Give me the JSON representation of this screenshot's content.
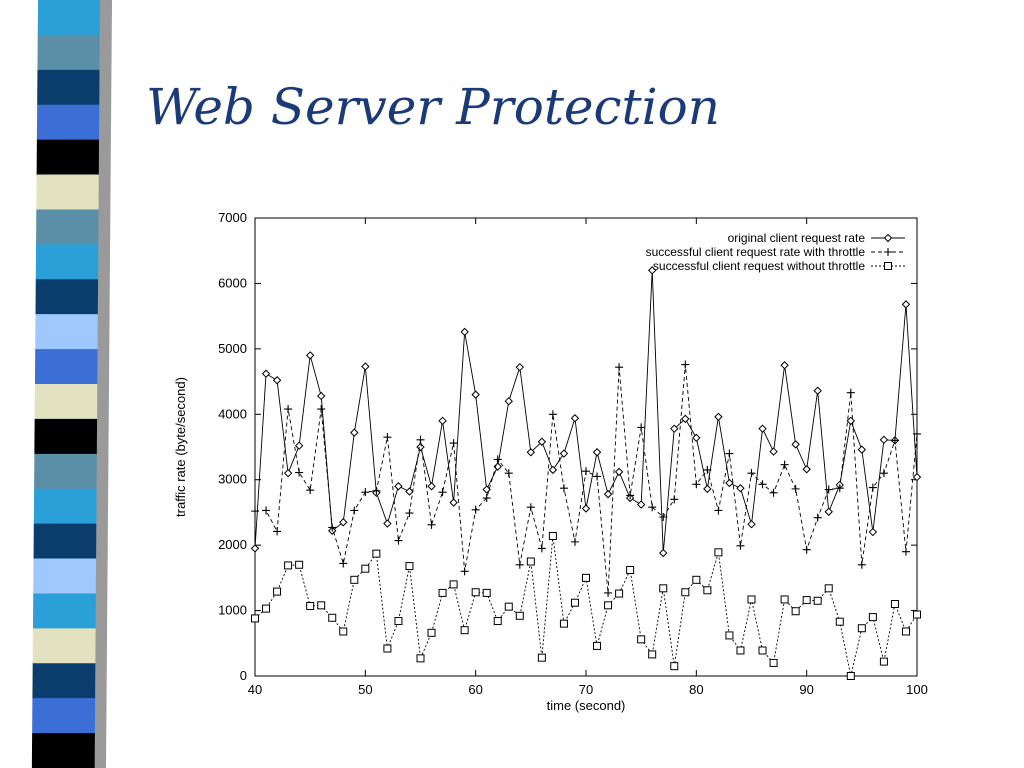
{
  "slide": {
    "title": "Web Server Protection",
    "stripe_colors": [
      "#2a9fd8",
      "#5b8fa8",
      "#0a3d6b",
      "#3b6fd6",
      "#000000",
      "#e2e2c0",
      "#5b8fa8",
      "#2a9fd8",
      "#0a3d6b",
      "#9ec8ff",
      "#3b6fd6",
      "#e2e2c0",
      "#000000",
      "#5b8fa8",
      "#2a9fd8",
      "#0a3d6b",
      "#9ec8ff",
      "#2a9fd8",
      "#e2e2c0",
      "#0a3d6b",
      "#3b6fd6",
      "#000000"
    ]
  },
  "chart_data": {
    "type": "line",
    "title": "",
    "xlabel": "time (second)",
    "ylabel": "traffic rate (byte/second)",
    "xlim": [
      40,
      100
    ],
    "ylim": [
      0,
      7000
    ],
    "xticks": [
      40,
      50,
      60,
      70,
      80,
      90,
      100
    ],
    "yticks": [
      0,
      1000,
      2000,
      3000,
      4000,
      5000,
      6000,
      7000
    ],
    "legend_position": "top-right",
    "x": [
      40,
      41,
      42,
      43,
      44,
      45,
      46,
      47,
      48,
      49,
      50,
      51,
      52,
      53,
      54,
      55,
      56,
      57,
      58,
      59,
      60,
      61,
      62,
      63,
      64,
      65,
      66,
      67,
      68,
      69,
      70,
      71,
      72,
      73,
      74,
      75,
      76,
      77,
      78,
      79,
      80,
      81,
      82,
      83,
      84,
      85,
      86,
      87,
      88,
      89,
      90,
      91,
      92,
      93,
      94,
      95,
      96,
      97,
      98,
      99,
      100
    ],
    "series": [
      {
        "name": "original client request rate",
        "marker": "diamond",
        "dash": "solid",
        "values": [
          1950,
          4620,
          4520,
          3100,
          3520,
          4900,
          4280,
          2220,
          2350,
          3720,
          4730,
          2800,
          2330,
          2900,
          2820,
          3500,
          2900,
          3900,
          2650,
          5260,
          4300,
          2850,
          3200,
          4200,
          4720,
          3420,
          3580,
          3150,
          3400,
          3940,
          2560,
          3420,
          2780,
          3120,
          2720,
          2620,
          6200,
          1880,
          3780,
          3930,
          3640,
          2860,
          3960,
          2950,
          2870,
          2320,
          3780,
          3430,
          4750,
          3540,
          3160,
          4360,
          2510,
          2920,
          3900,
          3460,
          2200,
          3610,
          3600,
          5680,
          3040
        ]
      },
      {
        "name": "successful client request rate with throttle",
        "marker": "plus",
        "dash": "dashed",
        "values": [
          2520,
          2530,
          2210,
          4080,
          3110,
          2840,
          4080,
          2270,
          1720,
          2530,
          2810,
          2830,
          3650,
          2070,
          2490,
          3610,
          2310,
          2810,
          3560,
          1600,
          2540,
          2720,
          3310,
          3100,
          1700,
          2580,
          1950,
          4000,
          2870,
          2050,
          3130,
          3050,
          1270,
          4720,
          2760,
          3800,
          2580,
          2430,
          2700,
          4760,
          2930,
          3150,
          2530,
          3400,
          1990,
          3100,
          2930,
          2800,
          3230,
          2860,
          1930,
          2420,
          2850,
          2870,
          4330,
          1700,
          2880,
          3100,
          3600,
          1900,
          3700
        ]
      },
      {
        "name": "successful client request without  throttle",
        "marker": "square",
        "dash": "dotted",
        "values": [
          880,
          1030,
          1290,
          1690,
          1700,
          1070,
          1080,
          890,
          680,
          1470,
          1640,
          1870,
          420,
          840,
          1680,
          270,
          660,
          1270,
          1400,
          700,
          1280,
          1270,
          840,
          1060,
          920,
          1750,
          280,
          2140,
          800,
          1120,
          1500,
          460,
          1080,
          1260,
          1620,
          560,
          330,
          1340,
          150,
          1280,
          1470,
          1310,
          1890,
          620,
          390,
          1170,
          390,
          200,
          1170,
          990,
          1160,
          1150,
          1340,
          830,
          0,
          730,
          900,
          220,
          1100,
          680,
          940
        ]
      }
    ]
  }
}
